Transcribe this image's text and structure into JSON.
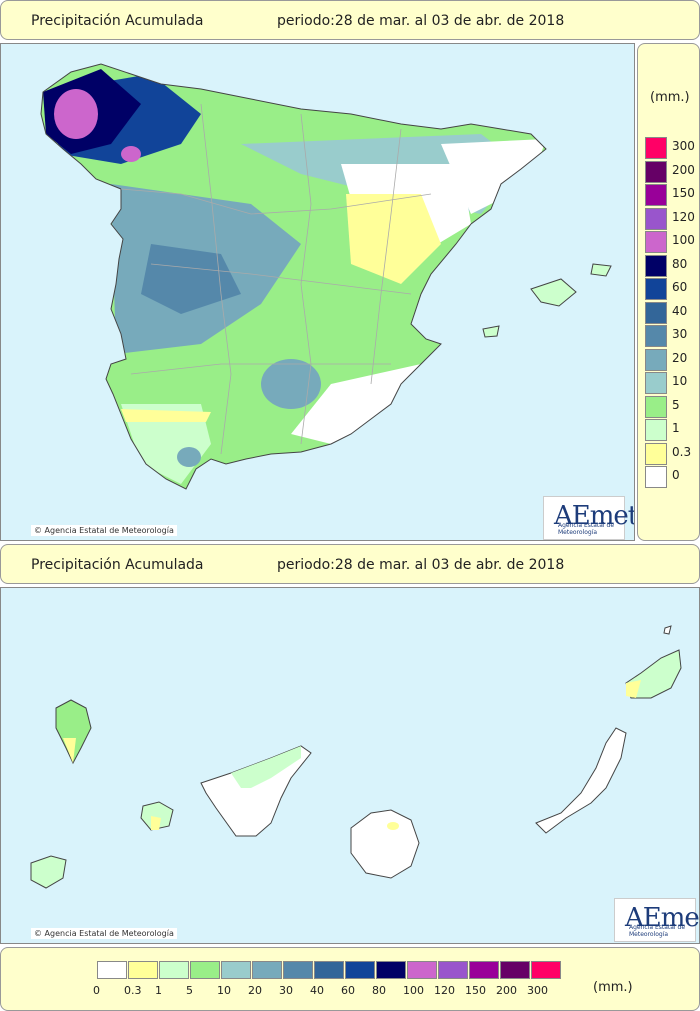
{
  "top_header": {
    "title": "Precipitación Acumulada",
    "period": "periodo:28 de mar. al 03 de abr. de 2018"
  },
  "bottom_header": {
    "title": "Precipitación Acumulada",
    "period": "periodo:28 de mar. al 03 de abr. de 2018"
  },
  "credit_text": "Agencia Estatal de Meteorología",
  "logo": {
    "word": "AEmet",
    "subtitle": "Agencia Estatal de Meteorología"
  },
  "legend": {
    "unit": "(mm.)",
    "classes": [
      {
        "label": "0",
        "color": "#ffffff"
      },
      {
        "label": "0.3",
        "color": "#ffff99"
      },
      {
        "label": "1",
        "color": "#ccffcc"
      },
      {
        "label": "5",
        "color": "#99ee88"
      },
      {
        "label": "10",
        "color": "#99cccc"
      },
      {
        "label": "20",
        "color": "#77aabb"
      },
      {
        "label": "30",
        "color": "#5588aa"
      },
      {
        "label": "40",
        "color": "#336699"
      },
      {
        "label": "60",
        "color": "#114499"
      },
      {
        "label": "80",
        "color": "#000066"
      },
      {
        "label": "100",
        "color": "#cc66cc"
      },
      {
        "label": "120",
        "color": "#9955cc"
      },
      {
        "label": "150",
        "color": "#990099"
      },
      {
        "label": "200",
        "color": "#660066"
      },
      {
        "label": "300",
        "color": "#ff0066"
      }
    ]
  }
}
